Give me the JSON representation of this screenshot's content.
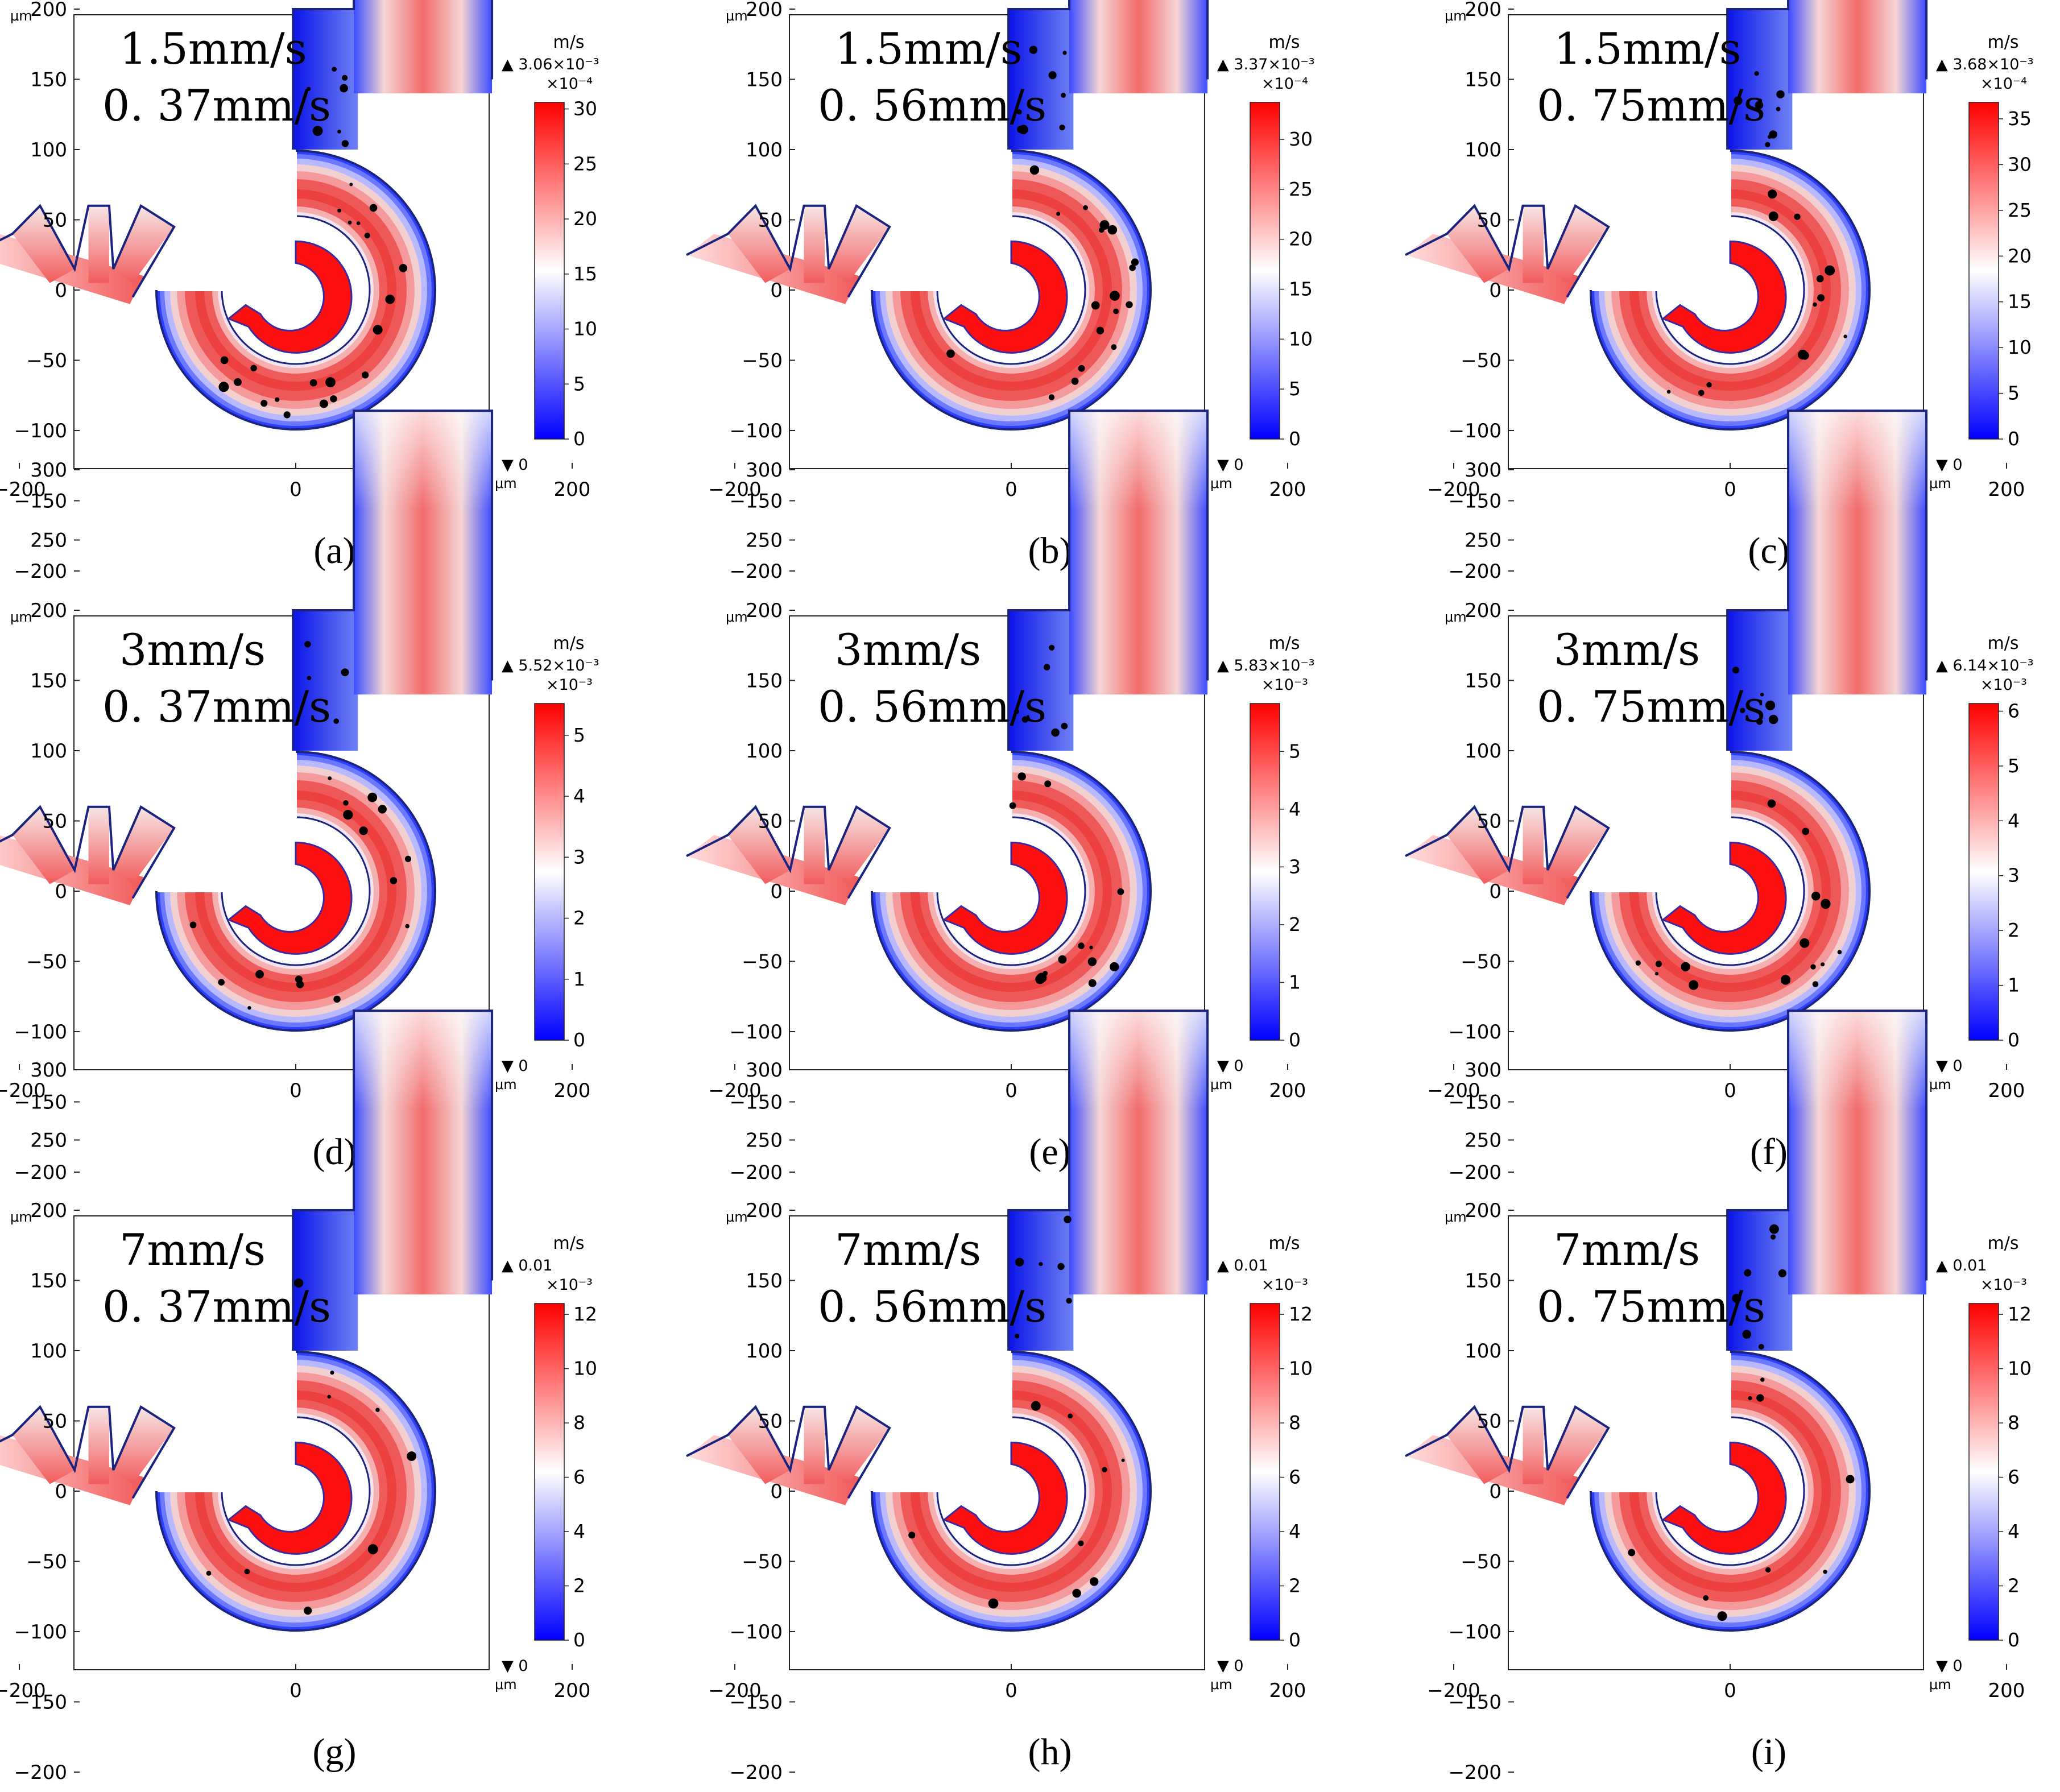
{
  "figure": {
    "axis_unit": "μm",
    "colorbar_unit": "m/s",
    "x_ticks": [
      "−200",
      "0",
      "200"
    ],
    "y_ticks": [
      "300",
      "250",
      "200",
      "150",
      "100",
      "50",
      "0",
      "−50",
      "−100",
      "−150",
      "−200"
    ],
    "min_marker": "▼ 0",
    "colors": {
      "low": "#0000ff",
      "mid": "#ffffff",
      "high": "#ff0000",
      "wall": "#1a237e",
      "arrow": "#ff1010",
      "particle": "#000000"
    },
    "arrow_icon": "curved-arrow-icon"
  },
  "panels": [
    {
      "caption": "(a)",
      "inlet_speed": "1.5mm/s",
      "side_speed": "0. 37mm/s",
      "max_marker": "▲ 3.06×10⁻³",
      "cb_multiplier": "×10⁻⁴",
      "cb_ticks": [
        "30",
        "25",
        "20",
        "15",
        "10",
        "5",
        "0"
      ],
      "cb_max": 30.6
    },
    {
      "caption": "(b)",
      "inlet_speed": "1.5mm/s",
      "side_speed": "0. 56mm/s",
      "max_marker": "▲ 3.37×10⁻³",
      "cb_multiplier": "×10⁻⁴",
      "cb_ticks": [
        "30",
        "25",
        "20",
        "15",
        "10",
        "5",
        "0"
      ],
      "cb_max": 33.7
    },
    {
      "caption": "(c)",
      "inlet_speed": "1.5mm/s",
      "side_speed": "0. 75mm/s",
      "max_marker": "▲ 3.68×10⁻³",
      "cb_multiplier": "×10⁻⁴",
      "cb_ticks": [
        "35",
        "30",
        "25",
        "20",
        "15",
        "10",
        "5",
        "0"
      ],
      "cb_max": 36.8
    },
    {
      "caption": "(d)",
      "inlet_speed": "3mm/s",
      "side_speed": "0. 37mm/s",
      "max_marker": "▲ 5.52×10⁻³",
      "cb_multiplier": "×10⁻³",
      "cb_ticks": [
        "5",
        "4",
        "3",
        "2",
        "1",
        "0"
      ],
      "cb_max": 5.52
    },
    {
      "caption": "(e)",
      "inlet_speed": "3mm/s",
      "side_speed": "0. 56mm/s",
      "max_marker": "▲ 5.83×10⁻³",
      "cb_multiplier": "×10⁻³",
      "cb_ticks": [
        "5",
        "4",
        "3",
        "2",
        "1",
        "0"
      ],
      "cb_max": 5.83
    },
    {
      "caption": "(f)",
      "inlet_speed": "3mm/s",
      "side_speed": "0. 75mm/s",
      "max_marker": "▲ 6.14×10⁻³",
      "cb_multiplier": "×10⁻³",
      "cb_ticks": [
        "6",
        "5",
        "4",
        "3",
        "2",
        "1",
        "0"
      ],
      "cb_max": 6.14
    },
    {
      "caption": "(g)",
      "inlet_speed": "7mm/s",
      "side_speed": "0. 37mm/s",
      "max_marker": "▲ 0.01",
      "cb_multiplier": "×10⁻³",
      "cb_ticks": [
        "12",
        "10",
        "8",
        "6",
        "4",
        "2",
        "0"
      ],
      "cb_max": 12.4
    },
    {
      "caption": "(h)",
      "inlet_speed": "7mm/s",
      "side_speed": "0. 56mm/s",
      "max_marker": "▲ 0.01",
      "cb_multiplier": "×10⁻³",
      "cb_ticks": [
        "12",
        "10",
        "8",
        "6",
        "4",
        "2",
        "0"
      ],
      "cb_max": 12.4
    },
    {
      "caption": "(i)",
      "inlet_speed": "7mm/s",
      "side_speed": "0. 75mm/s",
      "max_marker": "▲ 0.01",
      "cb_multiplier": "×10⁻³",
      "cb_ticks": [
        "12",
        "10",
        "8",
        "6",
        "4",
        "2",
        "0"
      ],
      "cb_max": 12.4
    }
  ]
}
